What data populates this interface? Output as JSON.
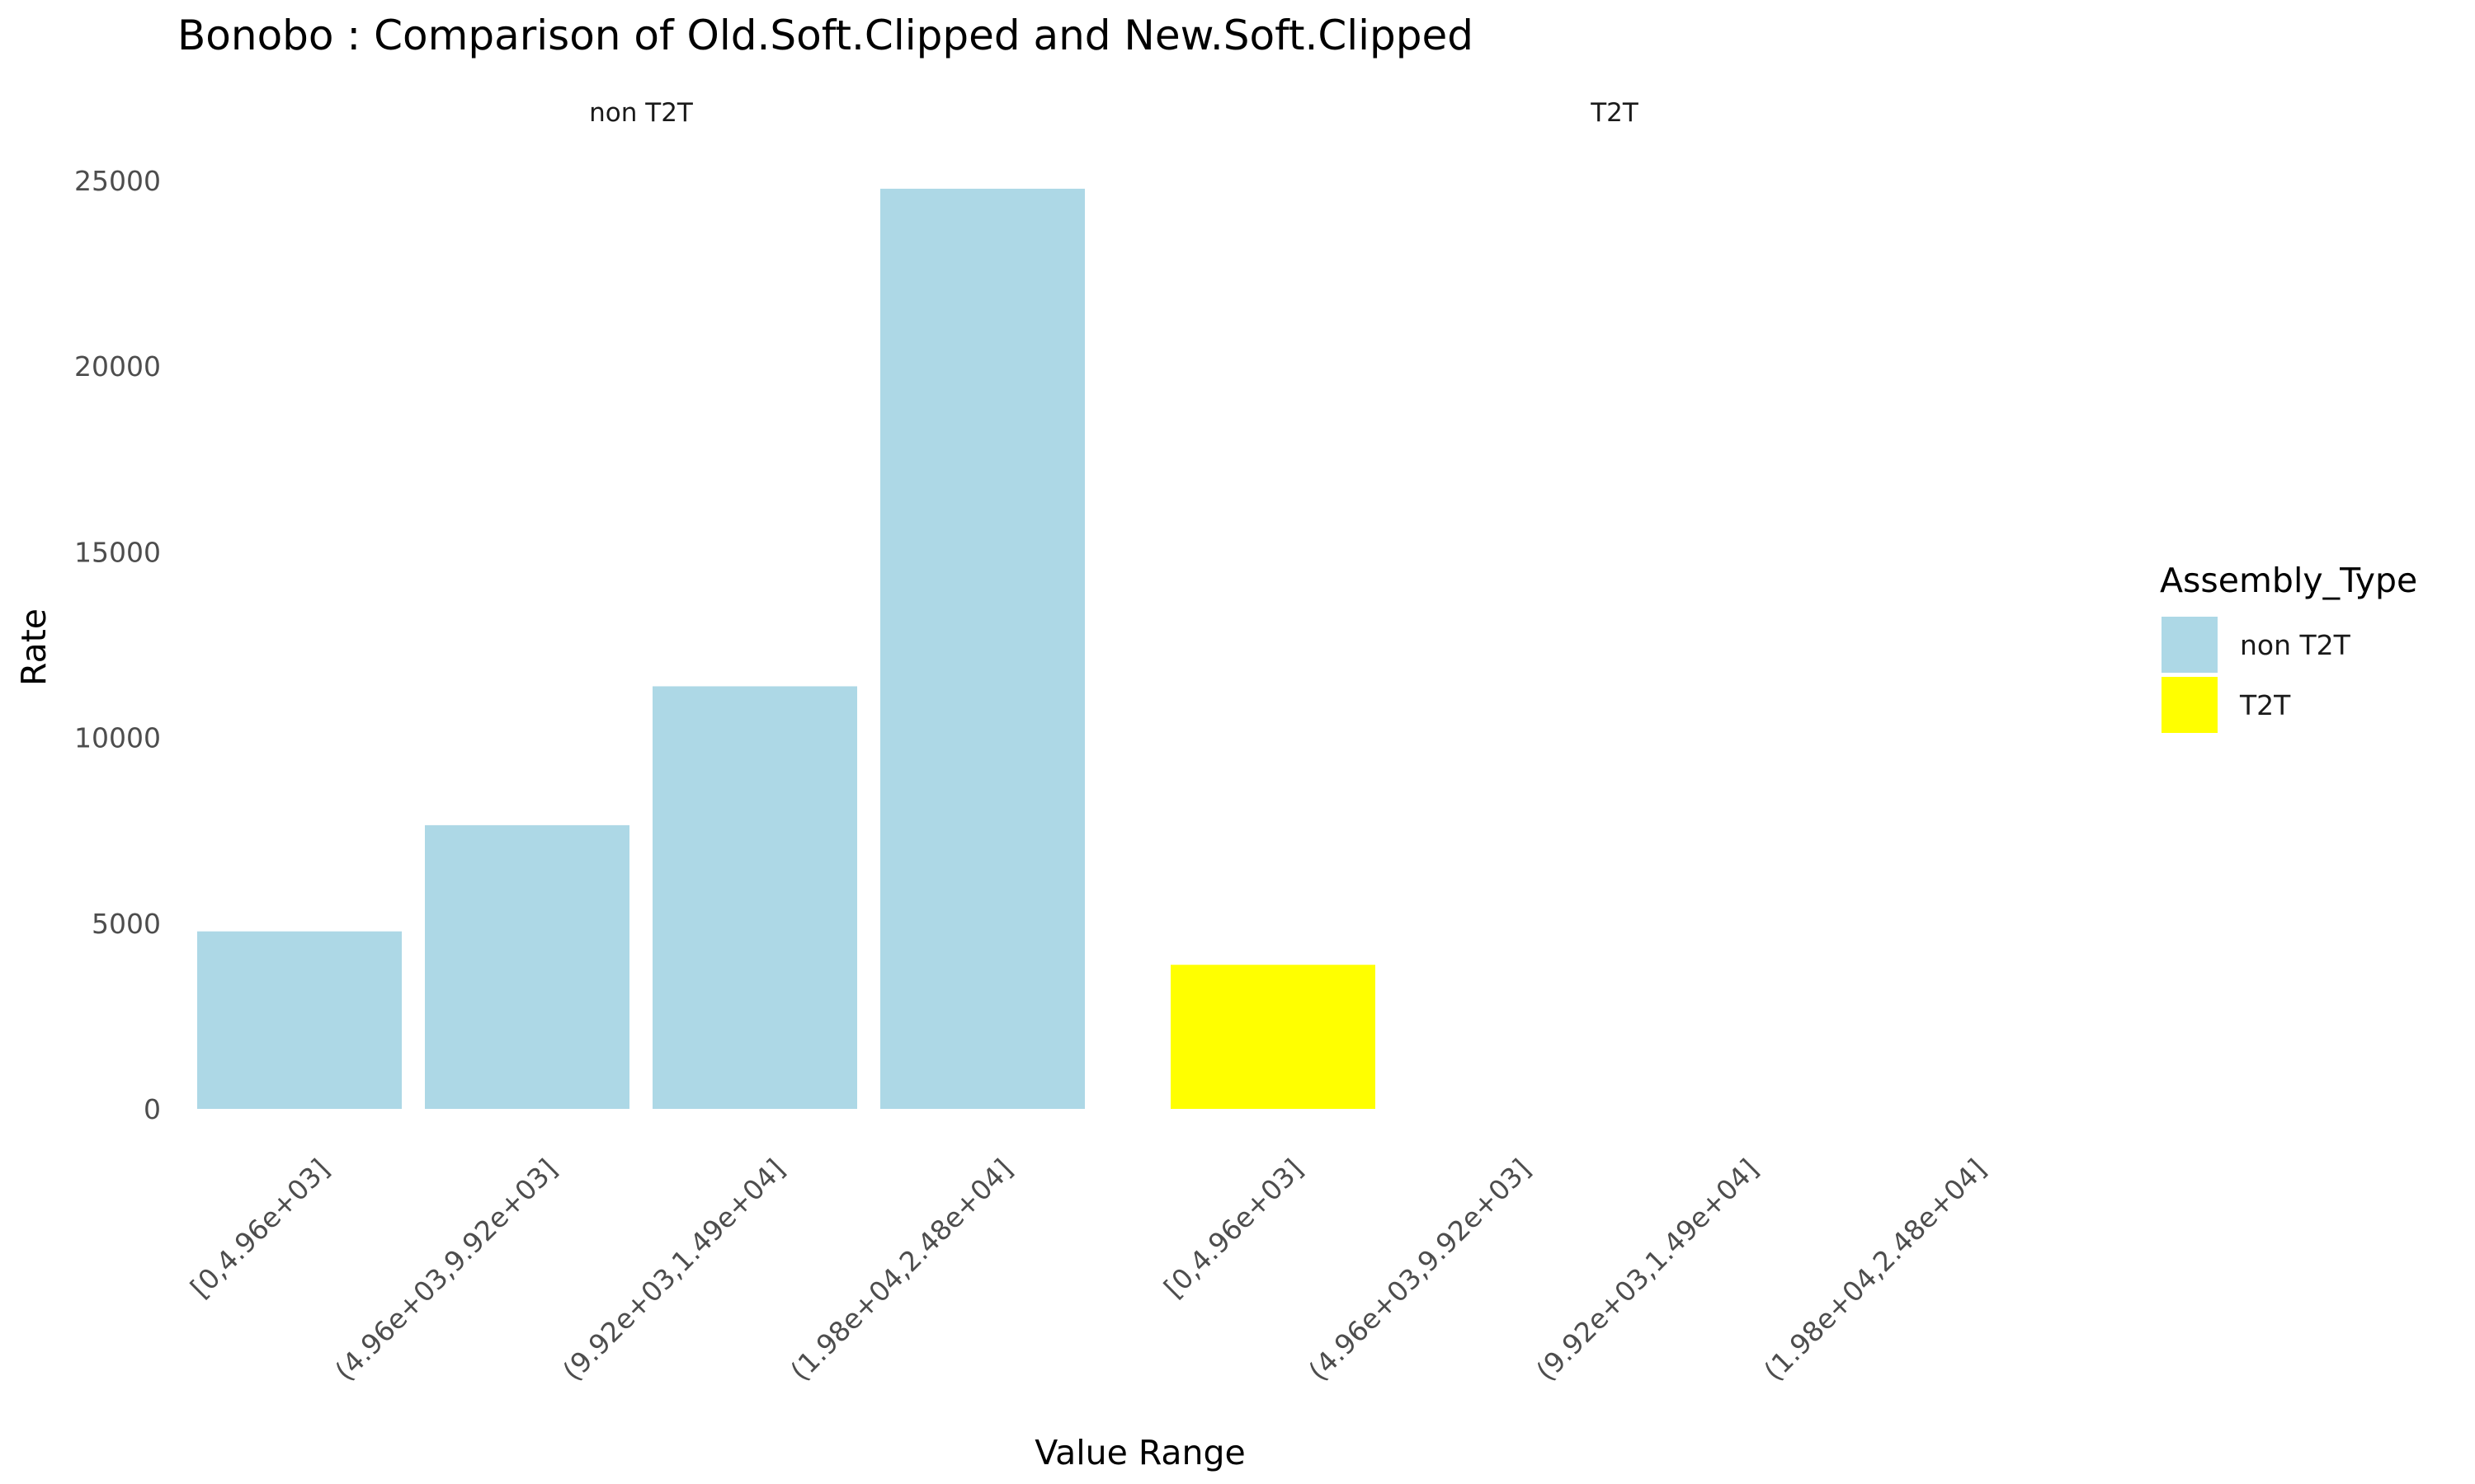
{
  "chart_data": {
    "type": "bar",
    "title": "Bonobo : Comparison of Old.Soft.Clipped and New.Soft.Clipped",
    "xlabel": "Value Range",
    "ylabel": "Rate",
    "ylim": [
      -1500,
      26000
    ],
    "yticks": [
      0,
      5000,
      10000,
      15000,
      20000,
      25000
    ],
    "ytick_labels": [
      "0",
      "5000",
      "10000",
      "15000",
      "20000",
      "25000"
    ],
    "grid": false,
    "legend": {
      "title": "Assembly_Type",
      "position": "right",
      "entries": [
        "non T2T",
        "T2T"
      ]
    },
    "colors": {
      "non T2T": "#ADD8E6",
      "T2T": "#FFFF00"
    },
    "facets": [
      {
        "label": "non T2T",
        "categories": [
          "[0,4.96e+03]",
          "(4.96e+03,9.92e+03]",
          "(9.92e+03,1.49e+04]",
          "(1.98e+04,2.48e+04]"
        ],
        "values": [
          4780,
          7640,
          11380,
          24780
        ]
      },
      {
        "label": "T2T",
        "categories": [
          "[0,4.96e+03]",
          "(4.96e+03,9.92e+03]",
          "(9.92e+03,1.49e+04]",
          "(1.98e+04,2.48e+04]"
        ],
        "values": [
          3880,
          0,
          0,
          0
        ]
      }
    ]
  }
}
